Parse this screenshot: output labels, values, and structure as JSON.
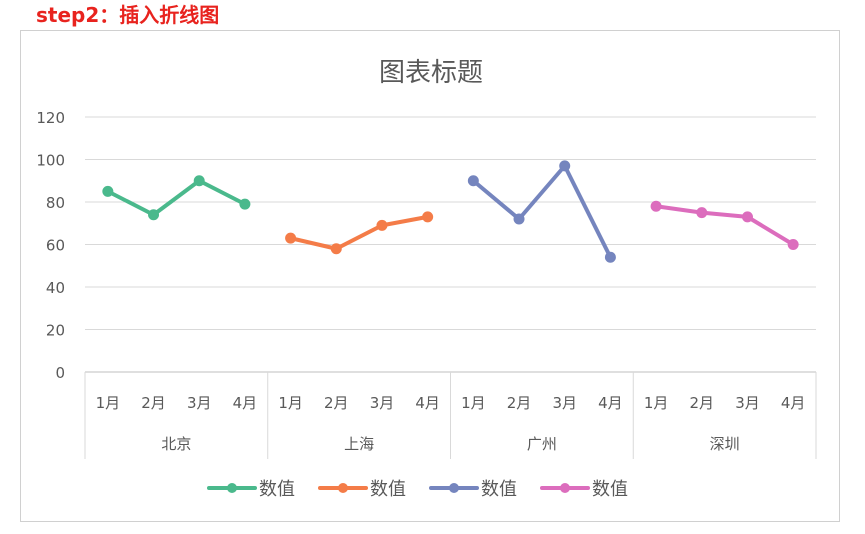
{
  "header": {
    "step_label": "step2：插入折线图"
  },
  "chart_data": {
    "type": "line",
    "title": "图表标题",
    "xlabel": "",
    "ylabel": "",
    "ylim": [
      0,
      120
    ],
    "yticks": [
      0,
      20,
      40,
      60,
      80,
      100,
      120
    ],
    "grid": true,
    "legend": "bottom",
    "groups": [
      "北京",
      "上海",
      "广州",
      "深圳"
    ],
    "categories": [
      "1月",
      "2月",
      "3月",
      "4月"
    ],
    "series": [
      {
        "name": "数值",
        "group": "北京",
        "color": "#4ab98c",
        "values": [
          85,
          74,
          90,
          79
        ]
      },
      {
        "name": "数值",
        "group": "上海",
        "color": "#f47c48",
        "values": [
          63,
          58,
          69,
          73
        ]
      },
      {
        "name": "数值",
        "group": "广州",
        "color": "#7585be",
        "values": [
          90,
          72,
          97,
          54
        ]
      },
      {
        "name": "数值",
        "group": "深圳",
        "color": "#dc6dbd",
        "values": [
          78,
          75,
          73,
          60
        ]
      }
    ]
  }
}
